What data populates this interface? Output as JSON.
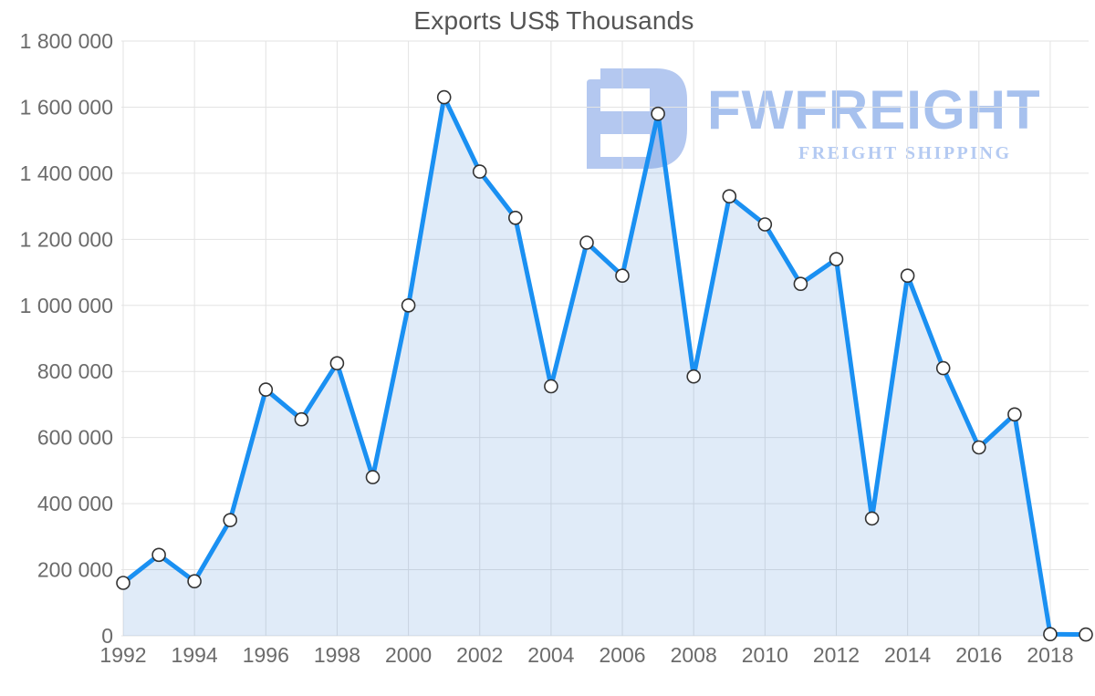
{
  "title": "Exports US$ Thousands",
  "logo": {
    "name": "FWFREIGHT",
    "tagline": "FREIGHT SHIPPING",
    "icon": "fwfreight-logo-icon",
    "icon_color": "#b4c8f0",
    "name_color": "#a7c1ee",
    "tagline_color": "#b4caf2"
  },
  "chart_data": {
    "type": "area",
    "title": "Exports US$ Thousands",
    "xlabel": "",
    "ylabel": "",
    "x": [
      1992,
      1993,
      1994,
      1995,
      1996,
      1997,
      1998,
      1999,
      2000,
      2001,
      2002,
      2003,
      2004,
      2005,
      2006,
      2007,
      2008,
      2009,
      2010,
      2011,
      2012,
      2013,
      2014,
      2015,
      2016,
      2017,
      2018,
      2019
    ],
    "series": [
      {
        "name": "Exports US$ Thousands",
        "values": [
          160000,
          245000,
          165000,
          350000,
          745000,
          655000,
          825000,
          480000,
          1000000,
          1630000,
          1405000,
          1265000,
          755000,
          1190000,
          1090000,
          1580000,
          785000,
          1330000,
          1245000,
          1065000,
          1140000,
          355000,
          1090000,
          810000,
          570000,
          670000,
          5000,
          4000
        ]
      }
    ],
    "ylim": [
      0,
      1800000
    ],
    "y_ticks": [
      0,
      200000,
      400000,
      600000,
      800000,
      1000000,
      1200000,
      1400000,
      1600000,
      1800000
    ],
    "y_tick_labels": [
      "0",
      "200 000",
      "400 000",
      "600 000",
      "800 000",
      "1 000 000",
      "1 200 000",
      "1 400 000",
      "1 600 000",
      "1 800 000"
    ],
    "x_ticks": [
      1992,
      1994,
      1996,
      1998,
      2000,
      2002,
      2004,
      2006,
      2008,
      2010,
      2012,
      2014,
      2016,
      2018
    ],
    "x_tick_labels": [
      "1992",
      "1994",
      "1996",
      "1998",
      "2000",
      "2002",
      "2004",
      "2006",
      "2008",
      "2010",
      "2012",
      "2014",
      "2016",
      "2018"
    ],
    "grid": true,
    "legend": "none",
    "colors": {
      "line": "#1a90f2",
      "fill": "rgba(60,130,210,0.16)",
      "marker_fill": "#ffffff",
      "marker_stroke": "#333333",
      "grid_line": "#e3e3e3",
      "tick_text": "#6b6b6b",
      "title_text": "#555555"
    }
  }
}
